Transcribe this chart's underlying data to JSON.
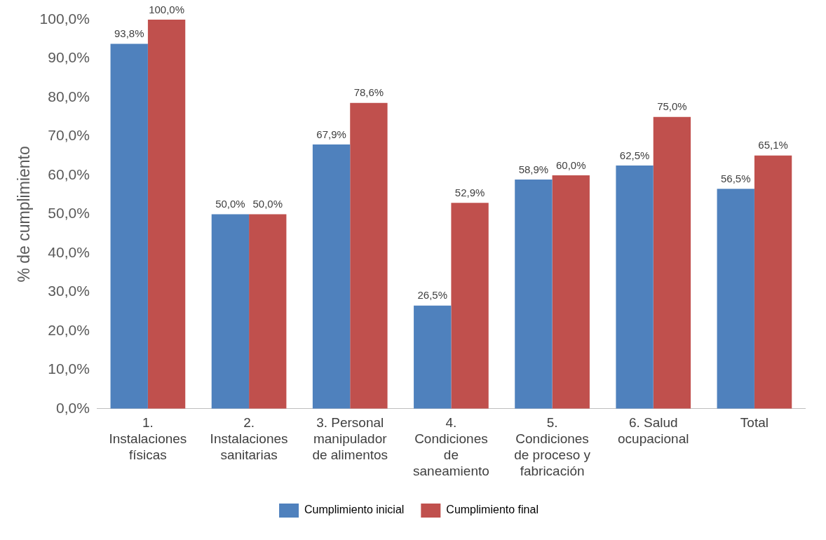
{
  "chart_data": {
    "type": "bar",
    "ylabel": "% de cumplimiento",
    "categories": [
      "1. Instalaciones físicas",
      "2. Instalaciones sanitarias",
      "3. Personal manipulador de alimentos",
      "4. Condiciones de saneamiento",
      "5. Condiciones de proceso y fabricación",
      "6. Salud ocupacional",
      "Total"
    ],
    "series": [
      {
        "name": "Cumplimiento inicial",
        "color": "#4f81bd",
        "values": [
          93.8,
          50.0,
          67.9,
          26.5,
          58.9,
          62.5,
          56.5
        ],
        "value_labels": [
          "93,8%",
          "50,0%",
          "67,9%",
          "26,5%",
          "58,9%",
          "62,5%",
          "56,5%"
        ]
      },
      {
        "name": "Cumplimiento final",
        "color": "#c0504d",
        "values": [
          100.0,
          50.0,
          78.6,
          52.9,
          60.0,
          75.0,
          65.1
        ],
        "value_labels": [
          "100,0%",
          "50,0%",
          "78,6%",
          "52,9%",
          "60,0%",
          "75,0%",
          "65,1%"
        ]
      }
    ],
    "ylim": [
      0,
      100
    ],
    "yticks": [
      {
        "value": 0,
        "label": "0,0%"
      },
      {
        "value": 10,
        "label": "10,0%"
      },
      {
        "value": 20,
        "label": "20,0%"
      },
      {
        "value": 30,
        "label": "30,0%"
      },
      {
        "value": 40,
        "label": "40,0%"
      },
      {
        "value": 50,
        "label": "50,0%"
      },
      {
        "value": 60,
        "label": "60,0%"
      },
      {
        "value": 70,
        "label": "70,0%"
      },
      {
        "value": 80,
        "label": "80,0%"
      },
      {
        "value": 90,
        "label": "90,0%"
      },
      {
        "value": 100,
        "label": "100,0%"
      }
    ],
    "grid": false,
    "legend": "bottom"
  }
}
